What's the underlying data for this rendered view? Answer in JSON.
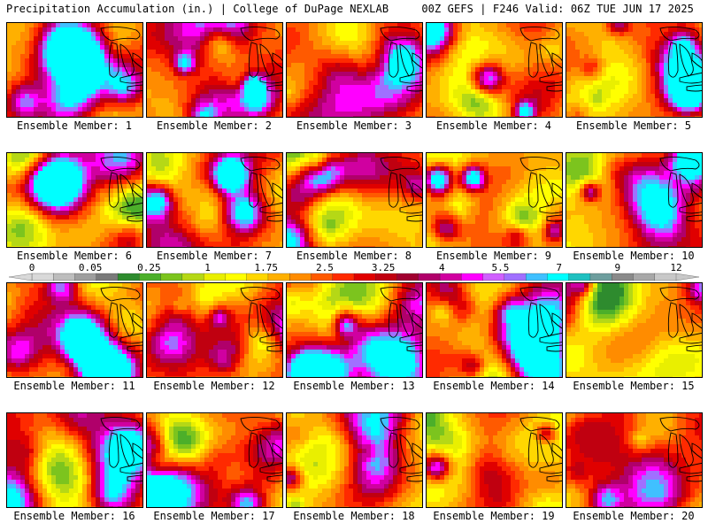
{
  "header": {
    "left": "Precipitation Accumulation (in.) | College of DuPage NEXLAB",
    "right": "00Z GEFS | F246 Valid: 06Z TUE JUN 17 2025"
  },
  "panels": [
    {
      "label": "Ensemble Member: 1"
    },
    {
      "label": "Ensemble Member: 2"
    },
    {
      "label": "Ensemble Member: 3"
    },
    {
      "label": "Ensemble Member: 4"
    },
    {
      "label": "Ensemble Member: 5"
    },
    {
      "label": "Ensemble Member: 6"
    },
    {
      "label": "Ensemble Member: 7"
    },
    {
      "label": "Ensemble Member: 8"
    },
    {
      "label": "Ensemble Member: 9"
    },
    {
      "label": "Ensemble Member: 10"
    },
    {
      "label": "Ensemble Member: 11"
    },
    {
      "label": "Ensemble Member: 12"
    },
    {
      "label": "Ensemble Member: 13"
    },
    {
      "label": "Ensemble Member: 14"
    },
    {
      "label": "Ensemble Member: 15"
    },
    {
      "label": "Ensemble Member: 16"
    },
    {
      "label": "Ensemble Member: 17"
    },
    {
      "label": "Ensemble Member: 18"
    },
    {
      "label": "Ensemble Member: 19"
    },
    {
      "label": "Ensemble Member: 20"
    }
  ],
  "colorbar": {
    "tick_labels": [
      "0",
      "0.05",
      "0.25",
      "1",
      "1.75",
      "2.5",
      "3.25",
      "4",
      "5.5",
      "7",
      "9",
      "12"
    ],
    "colors": [
      "#d9d9d9",
      "#bdbdbd",
      "#9e9e9e",
      "#7a7a7a",
      "#2e8b2e",
      "#4caf2a",
      "#7cc41e",
      "#b5d816",
      "#e9ef00",
      "#ffff00",
      "#ffd700",
      "#ffb000",
      "#ff8c00",
      "#ff5a00",
      "#ff2a00",
      "#e00000",
      "#c00010",
      "#a00030",
      "#b0006a",
      "#d000a0",
      "#ff00ff",
      "#d060ff",
      "#a070ff",
      "#40c0ff",
      "#00ffff",
      "#20c0c0",
      "#6e9e9e",
      "#8a8a8a",
      "#a8a8a8",
      "#c8c8c8"
    ]
  }
}
